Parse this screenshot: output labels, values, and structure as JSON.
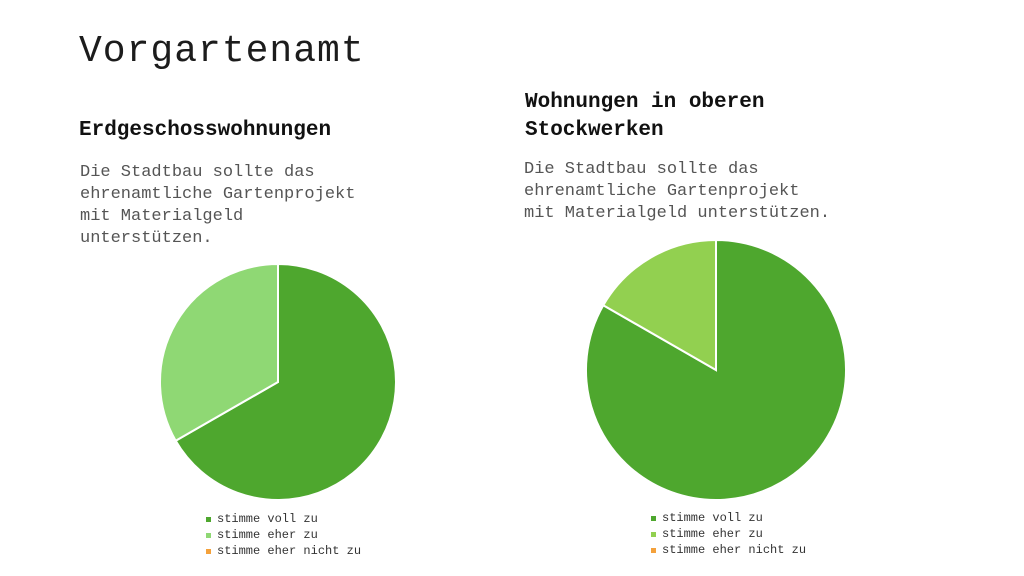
{
  "slide": {
    "title": "Vorgartenamt"
  },
  "chart_data": [
    {
      "type": "pie",
      "title": "Erdgeschosswohnungen",
      "subtitle": "Die Stadtbau sollte das\nehrenamtliche Gartenprojekt\nmit Materialgeld\nunterstützen.",
      "categories": [
        "stimme voll zu",
        "stimme eher zu",
        "stimme eher nicht zu"
      ],
      "values": [
        66.7,
        33.3,
        0
      ],
      "colors": [
        "#4ea72e",
        "#8fd874",
        "#f4a13b"
      ],
      "legend": "bottom"
    },
    {
      "type": "pie",
      "title": "Wohnungen in oberen\nStockwerken",
      "subtitle": "Die Stadtbau sollte das\nehrenamtliche Gartenprojekt\nmit Materialgeld unterstützen.",
      "categories": [
        "stimme voll zu",
        "stimme eher zu",
        "stimme eher nicht zu"
      ],
      "values": [
        83.3,
        16.7,
        0
      ],
      "colors": [
        "#4ea72e",
        "#92d050",
        "#f4a13b"
      ],
      "legend": "bottom"
    }
  ]
}
